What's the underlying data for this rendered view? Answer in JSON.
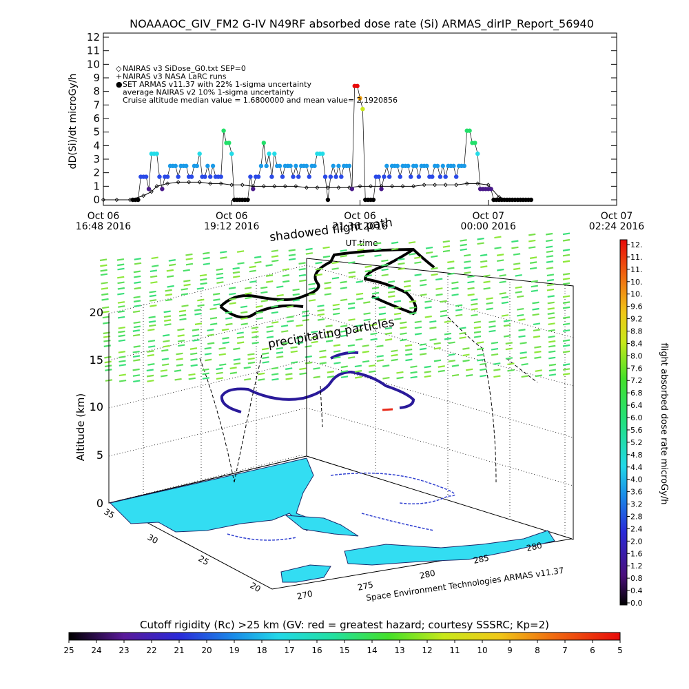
{
  "chart_data": [
    {
      "type": "scatter",
      "title": "NOAAAOC_GIV_FM2 G-IV   N49RF  absorbed dose rate (Si) ARMAS_dirIP_Report_56940",
      "ylabel": "dD(Si)/dt microGy/h",
      "xlabel": "UT time",
      "ylim": [
        0,
        12
      ],
      "y_ticks": [
        "0",
        "1",
        "2",
        "3",
        "4",
        "5",
        "6",
        "7",
        "8",
        "9",
        "10",
        "11",
        "12"
      ],
      "x_ticks": [
        {
          "line1": "Oct 06",
          "line2": "16:48 2016"
        },
        {
          "line1": "Oct 06",
          "line2": "19:12 2016"
        },
        {
          "line1": "Oct 06",
          "line2": "21:36 2016"
        },
        {
          "line1": "Oct 07",
          "line2": "00:00 2016"
        },
        {
          "line1": "Oct 07",
          "line2": "02:24 2016"
        }
      ],
      "legend": [
        {
          "symbol": "◇",
          "text": "NAIRAS v3 SiDose_G0.txt SEP=0"
        },
        {
          "symbol": "+",
          "text": "NAIRAS v3 NASA LaRC runs"
        },
        {
          "symbol": "●",
          "text": "SET ARMAS v11.37 with 22% 1-sigma uncertainty"
        },
        {
          "symbol": "",
          "text": "average NAIRAS v2 10% 1-sigma uncertainty"
        },
        {
          "symbol": "",
          "text": "Cruise altitude median value =    1.6800000 and mean value=    2.1920856"
        }
      ],
      "series": [
        {
          "name": "SET ARMAS v11.37",
          "x_hours": [
            0.55,
            0.6,
            0.65,
            0.7,
            0.75,
            0.8,
            0.85,
            0.9,
            0.95,
            1.0,
            1.05,
            1.1,
            1.15,
            1.2,
            1.25,
            1.3,
            1.35,
            1.4,
            1.45,
            1.5,
            1.55,
            1.6,
            1.65,
            1.7,
            1.75,
            1.8,
            1.85,
            1.9,
            1.95,
            2.0,
            2.05,
            2.1,
            2.15,
            2.2,
            2.25,
            2.3,
            2.35,
            2.4,
            2.45,
            2.5,
            2.55,
            2.6,
            2.65,
            2.7,
            2.75,
            2.8,
            2.85,
            2.9,
            2.95,
            3.0,
            3.05,
            3.1,
            3.15,
            3.2,
            3.25,
            3.3,
            3.35,
            3.4,
            3.45,
            3.5,
            3.55,
            3.6,
            3.65,
            3.7,
            3.75,
            3.8,
            3.85,
            3.9,
            3.95,
            4.0,
            4.05,
            4.1,
            4.15,
            4.2,
            4.25,
            4.3,
            4.35,
            4.4,
            4.45,
            4.5,
            4.55,
            4.6,
            4.65,
            4.7,
            4.75,
            4.8,
            4.85,
            4.9,
            4.95,
            5.0,
            5.05,
            5.1,
            5.15,
            5.2,
            5.25,
            5.3,
            5.35,
            5.4,
            5.45,
            5.5,
            5.55,
            5.6,
            5.65,
            5.7,
            5.75,
            5.8,
            5.85,
            5.9,
            5.95,
            6.0,
            6.05,
            6.1,
            6.15,
            6.2,
            6.25,
            6.3,
            6.35,
            6.4,
            6.45,
            6.5,
            6.55,
            6.6,
            6.65,
            6.7,
            6.75,
            6.8,
            6.85,
            6.9,
            6.95,
            7.0,
            7.05,
            7.1,
            7.15,
            7.2,
            7.25,
            7.3,
            7.35,
            7.4,
            7.45,
            7.5,
            7.55,
            7.6,
            7.65,
            7.7,
            7.75,
            7.8,
            7.85,
            7.9,
            7.95,
            8.0
          ],
          "values": [
            0.0,
            0.0,
            0.0,
            1.7,
            1.7,
            1.7,
            0.8,
            3.4,
            3.4,
            3.4,
            1.7,
            0.8,
            1.7,
            1.7,
            2.5,
            2.5,
            2.5,
            1.7,
            2.5,
            2.5,
            2.5,
            1.7,
            1.7,
            2.5,
            2.5,
            3.4,
            1.7,
            1.7,
            2.5,
            1.7,
            2.5,
            1.7,
            1.7,
            1.7,
            5.1,
            4.2,
            4.2,
            3.4,
            0.0,
            0.0,
            0.0,
            0.0,
            0.0,
            0.0,
            1.7,
            0.8,
            1.7,
            1.7,
            2.5,
            4.2,
            2.5,
            3.4,
            1.7,
            3.4,
            2.5,
            2.5,
            1.7,
            2.5,
            2.5,
            2.5,
            1.7,
            2.5,
            1.7,
            2.5,
            2.5,
            2.5,
            1.7,
            2.5,
            2.5,
            3.4,
            3.4,
            3.4,
            1.7,
            0.0,
            1.7,
            2.5,
            1.7,
            2.5,
            1.7,
            2.5,
            2.5,
            2.5,
            0.8,
            8.4,
            8.4,
            7.5,
            6.7,
            0.0,
            0.0,
            0.0,
            0.0,
            1.7,
            1.7,
            0.8,
            1.7,
            2.5,
            1.7,
            2.5,
            2.5,
            2.5,
            1.7,
            2.5,
            2.5,
            2.5,
            1.7,
            2.5,
            2.5,
            1.7,
            2.5,
            2.5,
            2.5,
            1.7,
            1.7,
            2.5,
            2.5,
            1.7,
            2.5,
            1.7,
            2.5,
            2.5,
            2.5,
            1.7,
            2.5,
            2.5,
            2.5,
            5.1,
            5.1,
            4.2,
            4.2,
            3.4,
            0.8,
            0.8,
            0.8,
            0.8,
            0.8,
            0.0,
            0.0,
            0.0,
            0.0,
            0.0,
            0.0,
            0.0,
            0.0,
            0.0,
            0.0,
            0.0,
            0.0,
            0.0,
            0.0,
            0.0
          ]
        },
        {
          "name": "NAIRAS v3 SiDose_G0.txt SEP=0",
          "x_hours": [
            0.0,
            0.25,
            0.5,
            0.75,
            0.9,
            1.0,
            1.2,
            1.4,
            1.6,
            1.8,
            2.0,
            2.2,
            2.4,
            2.6,
            2.8,
            3.0,
            3.2,
            3.4,
            3.6,
            3.8,
            4.0,
            4.2,
            4.4,
            4.6,
            4.8,
            5.0,
            5.2,
            5.4,
            5.6,
            5.8,
            6.0,
            6.2,
            6.4,
            6.6,
            6.8,
            7.0,
            7.2,
            7.4,
            7.6,
            7.8,
            8.0
          ],
          "values": [
            0.0,
            0.0,
            0.0,
            0.3,
            0.6,
            1.0,
            1.2,
            1.3,
            1.3,
            1.3,
            1.2,
            1.2,
            1.1,
            1.1,
            1.0,
            1.0,
            1.0,
            1.0,
            1.0,
            0.9,
            0.9,
            0.9,
            0.9,
            0.9,
            1.0,
            1.0,
            1.0,
            1.0,
            1.0,
            1.0,
            1.1,
            1.1,
            1.1,
            1.1,
            1.2,
            1.2,
            1.1,
            0.2,
            0.0,
            0.0,
            0.0
          ]
        }
      ],
      "x_range_hours": [
        0,
        9.6
      ],
      "x_origin": "Oct 06 16:48 2016"
    },
    {
      "type": "scatter",
      "title": "",
      "zlabel": "Altitude (km)",
      "z_ticks": [
        "0",
        "5",
        "10",
        "15",
        "20"
      ],
      "lat_ticks": [
        "35",
        "30",
        "25",
        "20"
      ],
      "lon_ticks": [
        "270",
        "275",
        "280",
        "285",
        "280"
      ],
      "annotations": [
        "shadowed flight path",
        "precipitating particles"
      ],
      "credit": "Space Environment Technologies ARMAS v11.37",
      "colorbar": {
        "label": "flight absorbed dose rate microGy/h",
        "ticks": [
          "12.",
          "11.",
          "11.",
          "10.",
          "10.",
          "9.6",
          "9.2",
          "8.8",
          "8.4",
          "8.0",
          "7.6",
          "7.2",
          "6.8",
          "6.4",
          "6.0",
          "5.6",
          "5.2",
          "4.8",
          "4.4",
          "4.0",
          "3.6",
          "3.2",
          "2.8",
          "2.4",
          "2.0",
          "1.6",
          "1.2",
          "0.8",
          "0.4",
          "0.0"
        ]
      },
      "cutoff_bar": {
        "title": "Cutoff rigidity (Rc) >25 km (GV: red = greatest hazard; courtesy SSSRC; Kp=2)",
        "ticks": [
          "25",
          "24",
          "23",
          "22",
          "21",
          "20",
          "19",
          "18",
          "17",
          "16",
          "15",
          "14",
          "13",
          "12",
          "11",
          "10",
          "9",
          "8",
          "7",
          "6",
          "5"
        ]
      }
    }
  ]
}
